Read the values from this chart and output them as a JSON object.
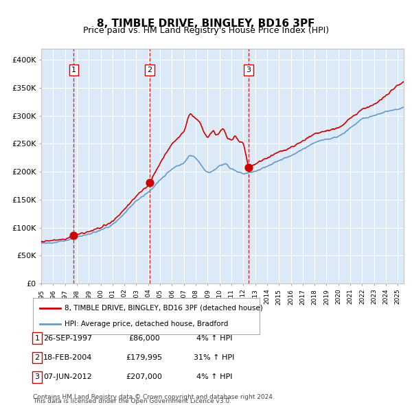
{
  "title": "8, TIMBLE DRIVE, BINGLEY, BD16 3PF",
  "subtitle": "Price paid vs. HM Land Registry's House Price Index (HPI)",
  "legend_line1": "8, TIMBLE DRIVE, BINGLEY, BD16 3PF (detached house)",
  "legend_line2": "HPI: Average price, detached house, Bradford",
  "footer1": "Contains HM Land Registry data © Crown copyright and database right 2024.",
  "footer2": "This data is licensed under the Open Government Licence v3.0.",
  "sale_labels": [
    "1",
    "2",
    "3"
  ],
  "sale_dates_str": [
    "26-SEP-1997",
    "18-FEB-2004",
    "07-JUN-2012"
  ],
  "sale_prices_str": [
    "£86,000",
    "£179,995",
    "£207,000"
  ],
  "sale_hpi_str": [
    "4% ↑ HPI",
    "31% ↑ HPI",
    "4% ↑ HPI"
  ],
  "sale_dates_num": [
    1997.74,
    2004.12,
    2012.43
  ],
  "sale_prices": [
    86000,
    179995,
    207000
  ],
  "background_color": "#dce9f7",
  "plot_bg_color": "#dce9f7",
  "red_line_color": "#cc0000",
  "blue_line_color": "#6699cc",
  "dashed_line_color": "#cc0000",
  "marker_color": "#cc0000",
  "grid_color": "#ffffff",
  "xlim": [
    1995.0,
    2025.5
  ],
  "ylim": [
    0,
    420000
  ],
  "yticks": [
    0,
    50000,
    100000,
    150000,
    200000,
    250000,
    300000,
    350000,
    400000
  ]
}
